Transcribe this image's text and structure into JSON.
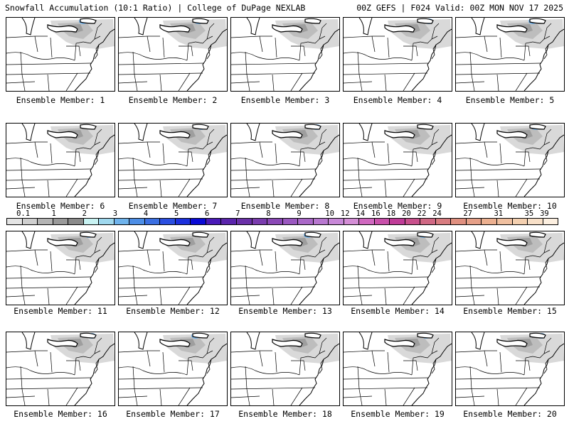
{
  "header": {
    "title": "Snowfall Accumulation (10:1 Ratio) | College of DuPage NEXLAB",
    "run_info": "00Z GEFS | F024 Valid: 00Z MON NOV 17 2025"
  },
  "members": [
    {
      "label": "Ensemble Member: 1"
    },
    {
      "label": "Ensemble Member: 2"
    },
    {
      "label": "Ensemble Member: 3"
    },
    {
      "label": "Ensemble Member: 4"
    },
    {
      "label": "Ensemble Member: 5"
    },
    {
      "label": "Ensemble Member: 6"
    },
    {
      "label": "Ensemble Member: 7"
    },
    {
      "label": "Ensemble Member: 8"
    },
    {
      "label": "Ensemble Member: 9"
    },
    {
      "label": "Ensemble Member: 10"
    },
    {
      "label": "Ensemble Member: 11"
    },
    {
      "label": "Ensemble Member: 12"
    },
    {
      "label": "Ensemble Member: 13"
    },
    {
      "label": "Ensemble Member: 14"
    },
    {
      "label": "Ensemble Member: 15"
    },
    {
      "label": "Ensemble Member: 16"
    },
    {
      "label": "Ensemble Member: 17"
    },
    {
      "label": "Ensemble Member: 18"
    },
    {
      "label": "Ensemble Member: 19"
    },
    {
      "label": "Ensemble Member: 20"
    }
  ],
  "colorbar": {
    "ticks": [
      "0.1",
      "1",
      "2",
      "3",
      "4",
      "5",
      "6",
      "7",
      "8",
      "9",
      "10",
      "12",
      "14",
      "16",
      "18",
      "20",
      "22",
      "24",
      "27",
      "31",
      "35",
      "39"
    ],
    "colors": [
      "#e4e4e4",
      "#cfcfcf",
      "#b4b4b4",
      "#9a9a9a",
      "#8a8a8a",
      "#c8f2f2",
      "#9fd8ee",
      "#6fb3ec",
      "#4d8ee6",
      "#3b6fe2",
      "#2a4ee0",
      "#1b2fdc",
      "#0a0ad6",
      "#4a1ab8",
      "#5a24ac",
      "#6a30a8",
      "#7a3cae",
      "#8a48b6",
      "#9a58c0",
      "#aa68c8",
      "#b878d0",
      "#c888d8",
      "#d48ed6",
      "#d068c0",
      "#c850aa",
      "#c03c98",
      "#c8508c",
      "#d06884",
      "#d87c80",
      "#e09080",
      "#e6a088",
      "#ecb090",
      "#f0c0a0",
      "#f4d0b0",
      "#f8e0c8",
      "#fcefe0"
    ]
  }
}
